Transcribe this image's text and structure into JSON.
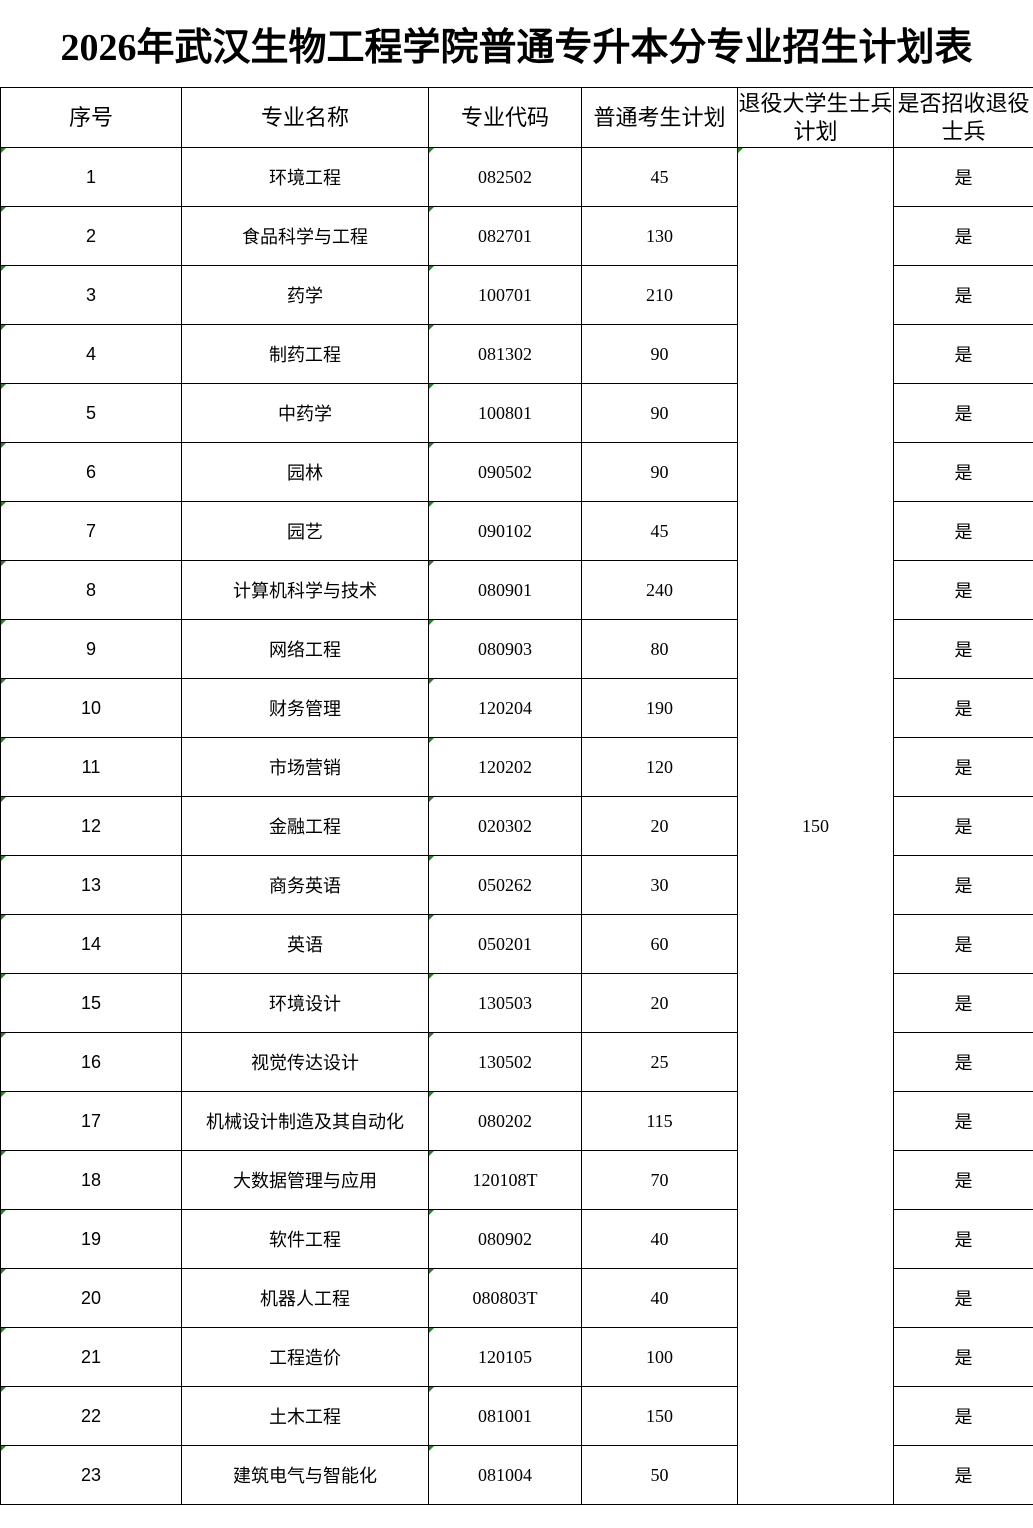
{
  "title": "2026年武汉生物工程学院普通专升本分专业招生计划表",
  "columns": [
    "序号",
    "专业名称",
    "专业代码",
    "普通考生计划",
    "退役大学生士兵计划",
    "是否招收退役士兵"
  ],
  "veteran_plan_total": "150",
  "rows": [
    {
      "no": "1",
      "name": "环境工程",
      "code": "082502",
      "plan": "45",
      "accept": "是"
    },
    {
      "no": "2",
      "name": "食品科学与工程",
      "code": "082701",
      "plan": "130",
      "accept": "是"
    },
    {
      "no": "3",
      "name": "药学",
      "code": "100701",
      "plan": "210",
      "accept": "是"
    },
    {
      "no": "4",
      "name": "制药工程",
      "code": "081302",
      "plan": "90",
      "accept": "是"
    },
    {
      "no": "5",
      "name": "中药学",
      "code": "100801",
      "plan": "90",
      "accept": "是"
    },
    {
      "no": "6",
      "name": "园林",
      "code": "090502",
      "plan": "90",
      "accept": "是"
    },
    {
      "no": "7",
      "name": "园艺",
      "code": "090102",
      "plan": "45",
      "accept": "是"
    },
    {
      "no": "8",
      "name": "计算机科学与技术",
      "code": "080901",
      "plan": "240",
      "accept": "是"
    },
    {
      "no": "9",
      "name": "网络工程",
      "code": "080903",
      "plan": "80",
      "accept": "是"
    },
    {
      "no": "10",
      "name": "财务管理",
      "code": "120204",
      "plan": "190",
      "accept": "是"
    },
    {
      "no": "11",
      "name": "市场营销",
      "code": "120202",
      "plan": "120",
      "accept": "是"
    },
    {
      "no": "12",
      "name": "金融工程",
      "code": "020302",
      "plan": "20",
      "accept": "是"
    },
    {
      "no": "13",
      "name": "商务英语",
      "code": "050262",
      "plan": "30",
      "accept": "是"
    },
    {
      "no": "14",
      "name": "英语",
      "code": "050201",
      "plan": "60",
      "accept": "是"
    },
    {
      "no": "15",
      "name": "环境设计",
      "code": "130503",
      "plan": "20",
      "accept": "是"
    },
    {
      "no": "16",
      "name": "视觉传达设计",
      "code": "130502",
      "plan": "25",
      "accept": "是"
    },
    {
      "no": "17",
      "name": "机械设计制造及其自动化",
      "code": "080202",
      "plan": "115",
      "accept": "是"
    },
    {
      "no": "18",
      "name": "大数据管理与应用",
      "code": "120108T",
      "plan": "70",
      "accept": "是"
    },
    {
      "no": "19",
      "name": "软件工程",
      "code": "080902",
      "plan": "40",
      "accept": "是"
    },
    {
      "no": "20",
      "name": "机器人工程",
      "code": "080803T",
      "plan": "40",
      "accept": "是"
    },
    {
      "no": "21",
      "name": "工程造价",
      "code": "120105",
      "plan": "100",
      "accept": "是"
    },
    {
      "no": "22",
      "name": "土木工程",
      "code": "081001",
      "plan": "150",
      "accept": "是"
    },
    {
      "no": "23",
      "name": "建筑电气与智能化",
      "code": "081004",
      "plan": "50",
      "accept": "是"
    }
  ]
}
